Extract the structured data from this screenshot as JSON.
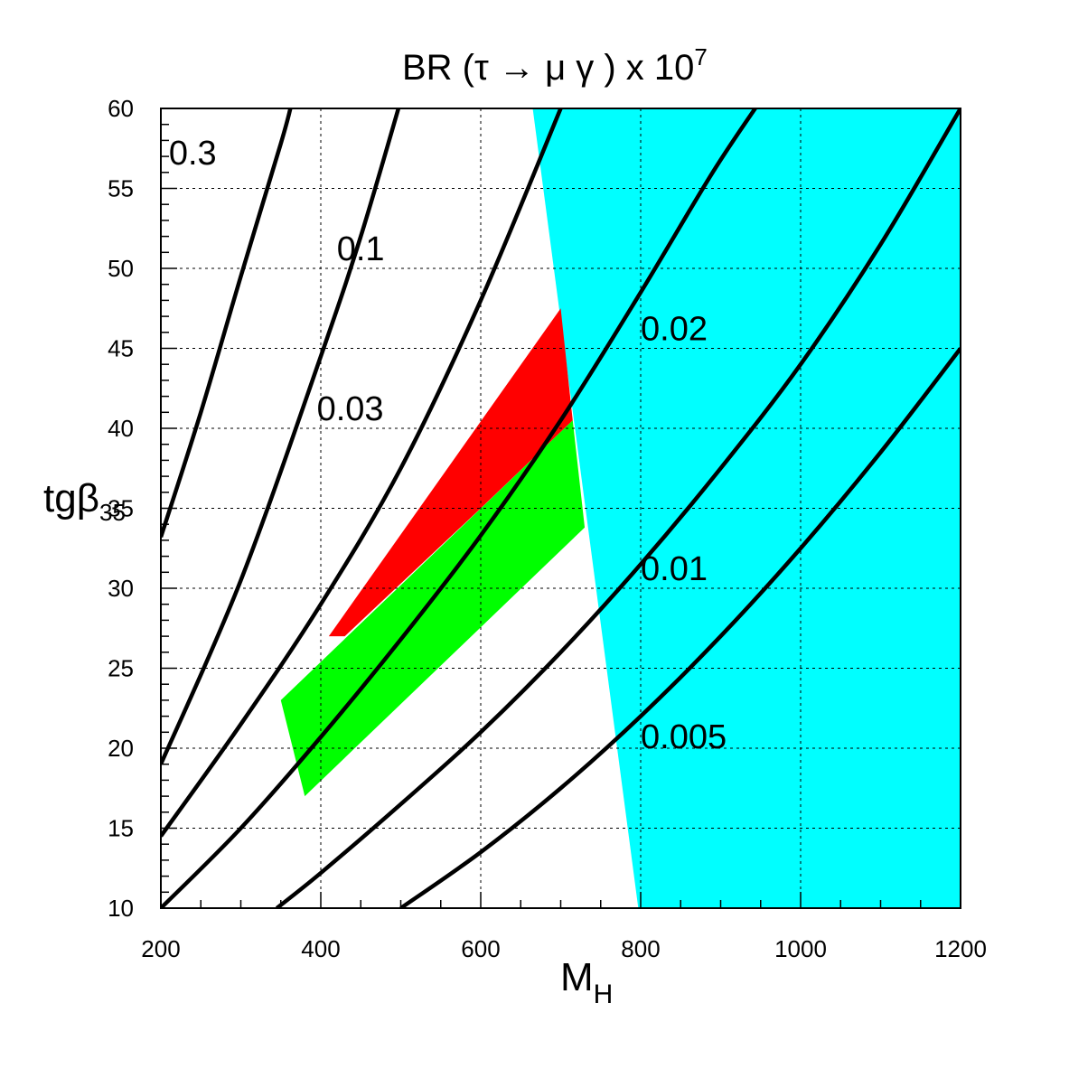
{
  "chart_data": {
    "type": "line",
    "title": {
      "prefix": "BR (",
      "tau": "τ",
      "arrow": "→",
      "mu": "μ",
      "gamma": "γ",
      "suffix": ") x 10",
      "exponent": "7"
    },
    "xlabel": {
      "main": "M",
      "sub": "H"
    },
    "ylabel": {
      "main": "tgβ",
      "sub": "35"
    },
    "xlim": [
      200,
      1200
    ],
    "ylim": [
      10,
      60
    ],
    "x_ticks": [
      200,
      400,
      600,
      800,
      1000,
      1200
    ],
    "y_ticks": [
      10,
      15,
      20,
      25,
      30,
      35,
      40,
      45,
      50,
      55,
      60
    ],
    "grid": true,
    "colors": {
      "cyan": "#00ffff",
      "red": "#ff0000",
      "green": "#00ff00",
      "line": "#000000"
    },
    "regions": [
      {
        "color": "cyan",
        "points": [
          [
            665,
            60
          ],
          [
            1200,
            60
          ],
          [
            1200,
            10
          ],
          [
            797,
            10
          ]
        ]
      },
      {
        "color": "green",
        "points": [
          [
            350,
            23
          ],
          [
            715,
            40.5
          ],
          [
            730,
            33.8
          ],
          [
            380,
            17
          ]
        ]
      },
      {
        "color": "red",
        "points": [
          [
            410,
            27
          ],
          [
            700,
            47.5
          ],
          [
            715,
            40.5
          ],
          [
            600,
            35
          ],
          [
            430,
            27
          ]
        ]
      }
    ],
    "series": [
      {
        "label": "0.3",
        "points": [
          [
            200,
            33.2
          ],
          [
            250,
            41
          ],
          [
            300,
            49.5
          ],
          [
            350,
            57.8
          ],
          [
            362,
            60
          ]
        ]
      },
      {
        "label": "0.1",
        "points": [
          [
            200,
            19
          ],
          [
            300,
            30.5
          ],
          [
            400,
            44.5
          ],
          [
            450,
            52
          ],
          [
            500,
            60.5
          ]
        ]
      },
      {
        "label": "0.03",
        "points": [
          [
            200,
            14.5
          ],
          [
            300,
            21.5
          ],
          [
            400,
            29
          ],
          [
            500,
            37.5
          ],
          [
            600,
            48
          ],
          [
            700,
            60
          ]
        ]
      },
      {
        "label": "0.02",
        "points": [
          [
            200,
            10
          ],
          [
            300,
            15
          ],
          [
            400,
            20.7
          ],
          [
            500,
            26.8
          ],
          [
            600,
            33.3
          ],
          [
            700,
            40.5
          ],
          [
            800,
            48.5
          ],
          [
            890,
            56
          ],
          [
            950,
            60.5
          ]
        ]
      },
      {
        "label": "0.01",
        "points": [
          [
            345,
            10
          ],
          [
            400,
            12.2
          ],
          [
            500,
            16.5
          ],
          [
            600,
            21
          ],
          [
            700,
            26
          ],
          [
            800,
            31.5
          ],
          [
            900,
            37.5
          ],
          [
            1000,
            44
          ],
          [
            1100,
            51.5
          ],
          [
            1200,
            60
          ]
        ]
      },
      {
        "label": "0.005",
        "points": [
          [
            500,
            10
          ],
          [
            600,
            13.5
          ],
          [
            700,
            17.5
          ],
          [
            800,
            22
          ],
          [
            900,
            27
          ],
          [
            1000,
            32.5
          ],
          [
            1100,
            38.5
          ],
          [
            1200,
            45
          ]
        ]
      }
    ],
    "annotations": [
      {
        "text": "0.3",
        "x": 210,
        "y": 56.5
      },
      {
        "text": "0.1",
        "x": 420,
        "y": 50.5
      },
      {
        "text": "0.03",
        "x": 395,
        "y": 40.5
      },
      {
        "text": "0.02",
        "x": 800,
        "y": 45.5
      },
      {
        "text": "0.01",
        "x": 800,
        "y": 30.5
      },
      {
        "text": "0.005",
        "x": 800,
        "y": 20
      }
    ]
  }
}
